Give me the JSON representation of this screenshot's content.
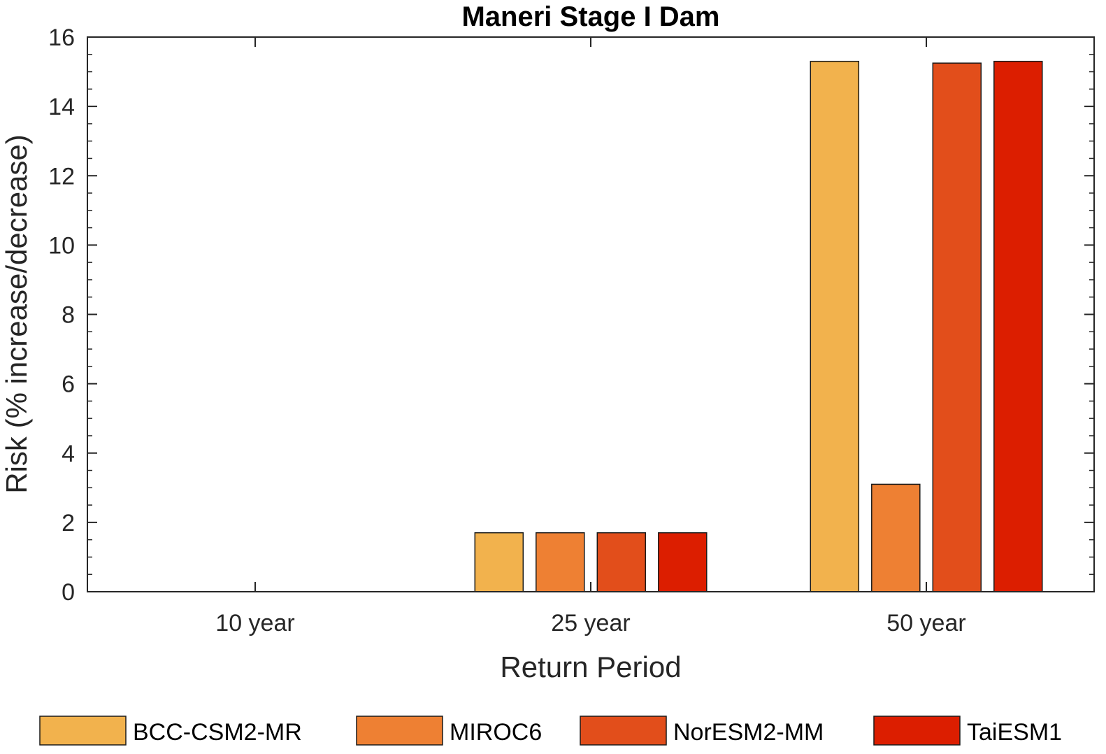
{
  "chart_data": {
    "type": "bar",
    "title": "Maneri Stage I Dam",
    "xlabel": "Return Period",
    "ylabel": "Risk (% increase/decrease)",
    "categories": [
      "10 year",
      "25 year",
      "50 year"
    ],
    "ylim": [
      0,
      16
    ],
    "yticks": [
      0,
      2,
      4,
      6,
      8,
      10,
      12,
      14,
      16
    ],
    "grid": false,
    "legend_position": "bottom",
    "series": [
      {
        "name": "BCC-CSM2-MR",
        "color": "#F2B24D",
        "values": [
          0,
          1.7,
          15.3
        ]
      },
      {
        "name": "MIROC6",
        "color": "#EE8033",
        "values": [
          0,
          1.7,
          3.1
        ]
      },
      {
        "name": "NorESM2-MM",
        "color": "#E24E1B",
        "values": [
          0,
          1.7,
          15.25
        ]
      },
      {
        "name": "TaiESM1",
        "color": "#DC1E00",
        "values": [
          0,
          1.7,
          15.3
        ]
      }
    ]
  }
}
